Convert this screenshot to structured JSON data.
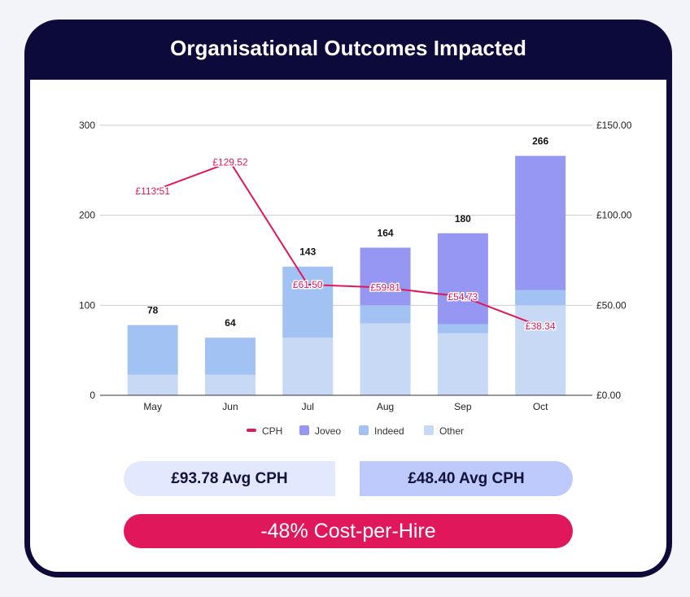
{
  "title": "Organisational Outcomes Impacted",
  "chart_data": {
    "type": "bar",
    "categories": [
      "May",
      "Jun",
      "Jul",
      "Aug",
      "Sep",
      "Oct"
    ],
    "series": [
      {
        "name": "Other",
        "values": [
          23,
          23,
          64,
          80,
          69,
          100
        ],
        "color": "#c8d9f6"
      },
      {
        "name": "Indeed",
        "values": [
          55,
          41,
          79,
          20,
          10,
          17
        ],
        "color": "#a3c2f4"
      },
      {
        "name": "Joveo",
        "values": [
          0,
          0,
          0,
          64,
          101,
          149
        ],
        "color": "#9597f2"
      }
    ],
    "totals": [
      78,
      64,
      143,
      164,
      180,
      266
    ],
    "line": {
      "name": "CPH",
      "values": [
        113.51,
        129.52,
        61.5,
        59.81,
        54.73,
        38.34
      ],
      "labels": [
        "£113.51",
        "£129.52",
        "£61.50",
        "£59.81",
        "£54.73",
        "£38.34"
      ],
      "color": "#e0185b"
    },
    "ylim": [
      0,
      300
    ],
    "yticks": [
      "0",
      "100",
      "200",
      "300"
    ],
    "y2lim": [
      0,
      150
    ],
    "y2ticks": [
      "£0.00",
      "£50.00",
      "£100.00",
      "£150.00"
    ],
    "legend": [
      "CPH",
      "Joveo",
      "Indeed",
      "Other"
    ],
    "legend_position": "bottom"
  },
  "summary": {
    "before": "£93.78 Avg CPH",
    "after": "£48.40 Avg CPH",
    "change": "-48% Cost-per-Hire"
  }
}
